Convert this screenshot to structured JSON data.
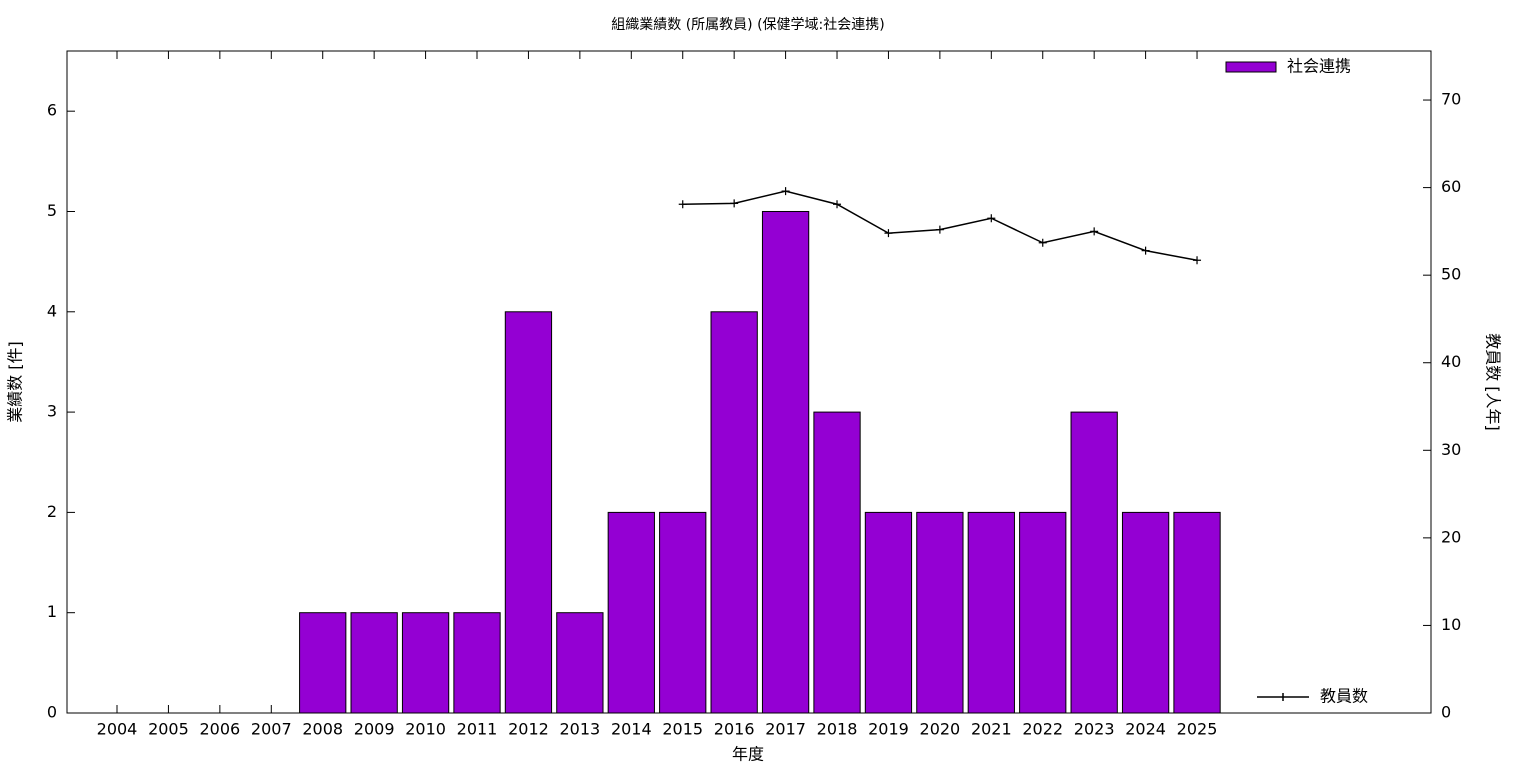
{
  "chart_data": {
    "type": "bar",
    "title": "組織業績数 (所属教員) (保健学域:社会連携)",
    "x_label": "年度",
    "y_label": "業績数 [件]",
    "y2_label": "教員数 [人年]",
    "categories": [
      "2004",
      "2005",
      "2006",
      "2007",
      "2008",
      "2009",
      "2010",
      "2011",
      "2012",
      "2013",
      "2014",
      "2015",
      "2016",
      "2017",
      "2018",
      "2019",
      "2020",
      "2021",
      "2022",
      "2023",
      "2024",
      "2025"
    ],
    "series": [
      {
        "name": "社会連携",
        "type": "bar",
        "color": "#9400d3",
        "values": [
          0,
          0,
          0,
          0,
          1,
          1,
          1,
          1,
          4,
          1,
          2,
          2,
          4,
          5,
          3,
          2,
          2,
          2,
          2,
          3,
          2,
          2
        ]
      },
      {
        "name": "教員数",
        "type": "line",
        "axis": "y2",
        "color": "#000000",
        "values": [
          null,
          null,
          null,
          null,
          null,
          null,
          null,
          null,
          null,
          null,
          null,
          58.1,
          58.2,
          59.6,
          58.1,
          54.8,
          55.2,
          56.5,
          53.7,
          55.0,
          52.8,
          51.7
        ]
      }
    ],
    "ylim": [
      0,
      6.6
    ],
    "yticks": [
      0,
      1,
      2,
      3,
      4,
      5,
      6
    ],
    "y2lim": [
      0,
      75.6
    ],
    "y2ticks": [
      0,
      10,
      20,
      30,
      40,
      50,
      60,
      70
    ]
  }
}
